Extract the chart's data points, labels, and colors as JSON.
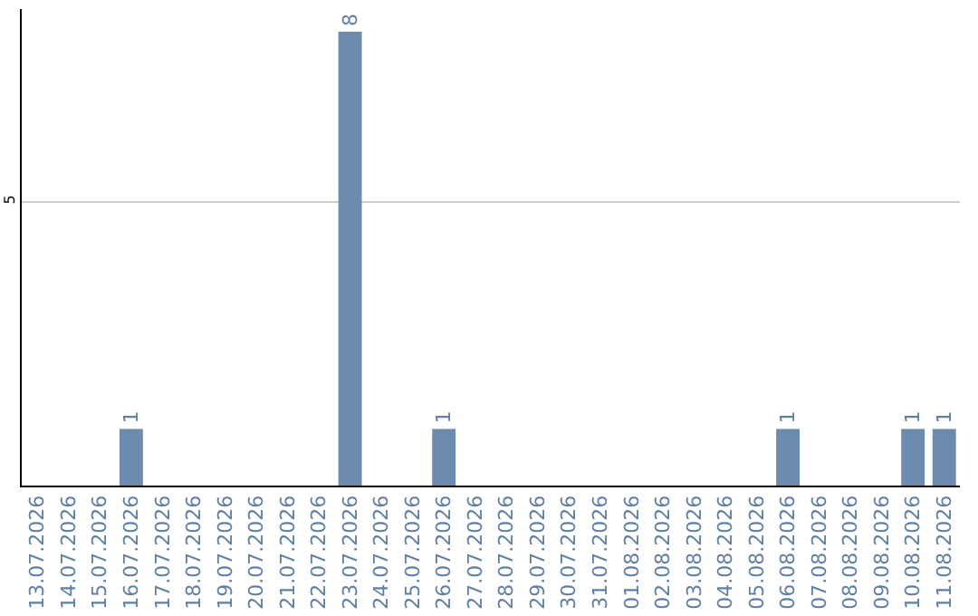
{
  "chart_data": {
    "type": "bar",
    "categories": [
      "13.07.2026",
      "14.07.2026",
      "15.07.2026",
      "16.07.2026",
      "17.07.2026",
      "18.07.2026",
      "19.07.2026",
      "20.07.2026",
      "21.07.2026",
      "22.07.2026",
      "23.07.2026",
      "24.07.2026",
      "25.07.2026",
      "26.07.2026",
      "27.07.2026",
      "28.07.2026",
      "29.07.2026",
      "30.07.2026",
      "31.07.2026",
      "01.08.2026",
      "02.08.2026",
      "03.08.2026",
      "04.08.2026",
      "05.08.2026",
      "06.08.2026",
      "07.08.2026",
      "08.08.2026",
      "09.08.2026",
      "10.08.2026",
      "11.08.2026"
    ],
    "values": [
      0,
      0,
      0,
      1,
      0,
      0,
      0,
      0,
      0,
      0,
      8,
      0,
      0,
      1,
      0,
      0,
      0,
      0,
      0,
      0,
      0,
      0,
      0,
      0,
      1,
      0,
      0,
      0,
      1,
      1
    ],
    "value_labels": [
      null,
      null,
      null,
      "1",
      null,
      null,
      null,
      null,
      null,
      null,
      "8",
      null,
      null,
      "1",
      null,
      null,
      null,
      null,
      null,
      null,
      null,
      null,
      null,
      null,
      "1",
      null,
      null,
      null,
      "1",
      "1"
    ],
    "color": "#6b8cae",
    "ylim": [
      0,
      8.4
    ],
    "yticks": [
      5
    ],
    "grid": "y",
    "legend": false
  }
}
